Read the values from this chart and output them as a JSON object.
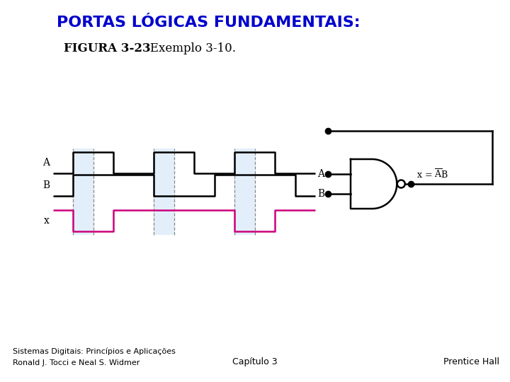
{
  "title": "PORTAS LÓGICAS FUNDAMENTAIS:",
  "subtitle_bold": "FIGURA 3-23",
  "subtitle_normal": "   Exemplo 3-10.",
  "title_color": "#0000CC",
  "title_fontsize": 16,
  "subtitle_fontsize": 12,
  "bg_color": "#FFFFFF",
  "footer_left1": "Sistemas Digitais: Princípios e Aplicações",
  "footer_left2": "Ronald J. Tocci e Neal S. Widmer",
  "footer_center": "Capítulo 3",
  "footer_right": "Prentice Hall",
  "signal_color_A": "#000000",
  "signal_color_B": "#000000",
  "signal_color_x": "#CC007A",
  "highlight_color": "#D6E9F8",
  "highlight_alpha": 0.7,
  "wA": [
    0,
    1,
    1,
    0,
    0,
    1,
    1,
    0,
    0,
    1,
    1,
    0,
    0
  ],
  "wB": [
    0,
    1,
    1,
    1,
    1,
    0,
    0,
    0,
    1,
    1,
    1,
    1,
    0
  ],
  "highlight_steps": [
    1,
    5,
    9
  ],
  "dashed_steps": [
    1,
    2,
    5,
    6,
    9,
    10
  ]
}
